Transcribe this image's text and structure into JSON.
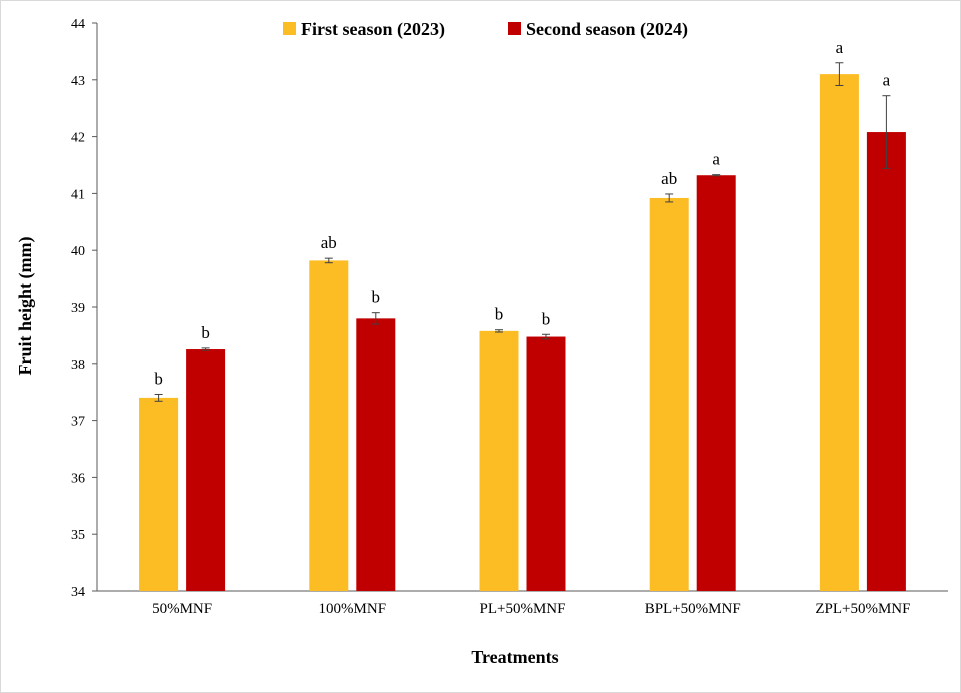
{
  "chart_data": {
    "type": "bar",
    "xlabel": "Treatments",
    "ylabel": "Fruit height (mm)",
    "ylim": [
      34,
      44
    ],
    "yticks": [
      34,
      35,
      36,
      37,
      38,
      39,
      40,
      41,
      42,
      43,
      44
    ],
    "grid": false,
    "legend_position": "top-center",
    "categories": [
      "50%MNF",
      "100%MNF",
      "PL+50%MNF",
      "BPL+50%MNF",
      "ZPL+50%MNF"
    ],
    "series": [
      {
        "name": "First season (2023)",
        "color": "#FBBC24",
        "values": [
          37.4,
          39.82,
          38.58,
          40.92,
          43.1
        ],
        "errors": [
          0.06,
          0.04,
          0.02,
          0.07,
          0.2
        ],
        "labels": [
          "b",
          "ab",
          "b",
          "ab",
          "a"
        ]
      },
      {
        "name": "Second season (2024)",
        "color": "#C00000",
        "values": [
          38.26,
          38.8,
          38.48,
          41.32,
          42.08
        ],
        "errors": [
          0.02,
          0.1,
          0.04,
          0.01,
          0.64
        ],
        "labels": [
          "b",
          "b",
          "b",
          "a",
          "a"
        ]
      }
    ]
  }
}
